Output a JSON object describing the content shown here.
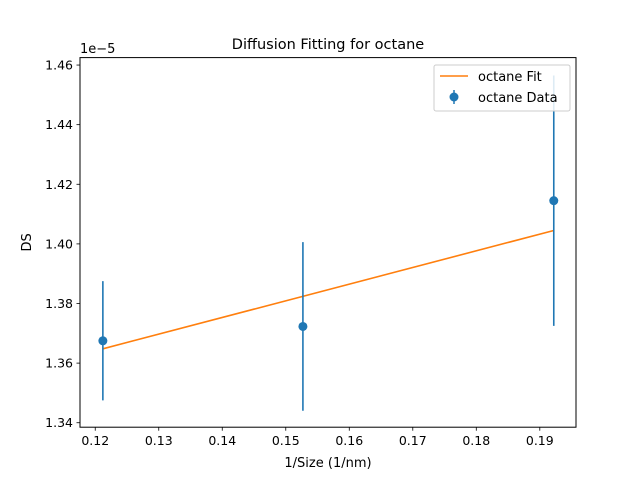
{
  "chart_data": {
    "type": "scatter",
    "title": "Diffusion Fitting for octane",
    "xlabel": "1/Size (1/nm)",
    "ylabel": "DS",
    "y_scale_label": "1e−5",
    "xlim": [
      0.1176,
      0.1957
    ],
    "ylim": [
      1.3385,
      1.4625
    ],
    "xticks": [
      0.12,
      0.13,
      0.14,
      0.15,
      0.16,
      0.17,
      0.18,
      0.19
    ],
    "xtick_labels": [
      "0.12",
      "0.13",
      "0.14",
      "0.15",
      "0.16",
      "0.17",
      "0.18",
      "0.19"
    ],
    "yticks": [
      1.34,
      1.36,
      1.38,
      1.4,
      1.42,
      1.44,
      1.46
    ],
    "ytick_labels": [
      "1.34",
      "1.36",
      "1.38",
      "1.40",
      "1.42",
      "1.44",
      "1.46"
    ],
    "grid": false,
    "legend_position": "top-right",
    "series": [
      {
        "name": "octane Fit",
        "kind": "line",
        "color": "#ff7f0e",
        "x": [
          0.1212,
          0.1922
        ],
        "y": [
          1.3648,
          1.4045
        ]
      },
      {
        "name": "octane Data",
        "kind": "errorbar",
        "color": "#1f77b4",
        "x": [
          0.1212,
          0.1527,
          0.1922
        ],
        "y": [
          1.3675,
          1.3723,
          1.4145
        ],
        "yerr": [
          0.02,
          0.0283,
          0.042
        ]
      }
    ]
  }
}
